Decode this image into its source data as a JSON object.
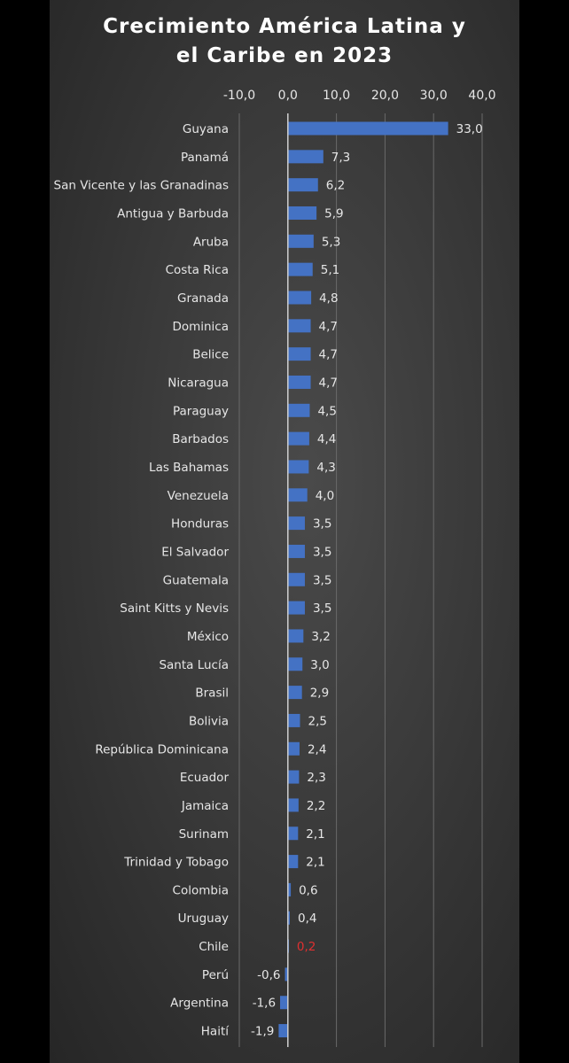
{
  "chart_data": {
    "type": "bar",
    "orientation": "horizontal",
    "title_lines": [
      "Crecimiento América Latina y",
      "el Caribe en 2023"
    ],
    "xlim": [
      -10,
      40
    ],
    "x_ticks": [
      "-10,0",
      "0,0",
      "10,0",
      "20,0",
      "30,0",
      "40,0"
    ],
    "x_tick_values": [
      -10,
      0,
      10,
      20,
      30,
      40
    ],
    "grid": true,
    "bar_color": "#4472c4",
    "highlight_label_color": "#e03030",
    "label_color": "#e6e6e6",
    "categories": [
      "Guyana",
      "Panamá",
      "San Vicente y las Granadinas",
      "Antigua y Barbuda",
      "Aruba",
      "Costa Rica",
      "Granada",
      "Dominica",
      "Belice",
      "Nicaragua",
      "Paraguay",
      "Barbados",
      "Las Bahamas",
      "Venezuela",
      "Honduras",
      "El Salvador",
      "Guatemala",
      "Saint Kitts y Nevis",
      "México",
      "Santa Lucía",
      "Brasil",
      "Bolivia",
      "República Dominicana",
      "Ecuador",
      "Jamaica",
      "Surinam",
      "Trinidad y Tobago",
      "Colombia",
      "Uruguay",
      "Chile",
      "Perú",
      "Argentina",
      "Haití"
    ],
    "values": [
      33.0,
      7.3,
      6.2,
      5.9,
      5.3,
      5.1,
      4.8,
      4.7,
      4.7,
      4.7,
      4.5,
      4.4,
      4.3,
      4.0,
      3.5,
      3.5,
      3.5,
      3.5,
      3.2,
      3.0,
      2.9,
      2.5,
      2.4,
      2.3,
      2.2,
      2.1,
      2.1,
      0.6,
      0.4,
      0.2,
      -0.6,
      -1.6,
      -1.9
    ],
    "value_labels": [
      "33,0",
      "7,3",
      "6,2",
      "5,9",
      "5,3",
      "5,1",
      "4,8",
      "4,7",
      "4,7",
      "4,7",
      "4,5",
      "4,4",
      "4,3",
      "4,0",
      "3,5",
      "3,5",
      "3,5",
      "3,5",
      "3,2",
      "3,0",
      "2,9",
      "2,5",
      "2,4",
      "2,3",
      "2,2",
      "2,1",
      "2,1",
      "0,6",
      "0,4",
      "0,2",
      "-0,6",
      "-1,6",
      "-1,9"
    ],
    "highlighted": [
      "Chile"
    ]
  }
}
